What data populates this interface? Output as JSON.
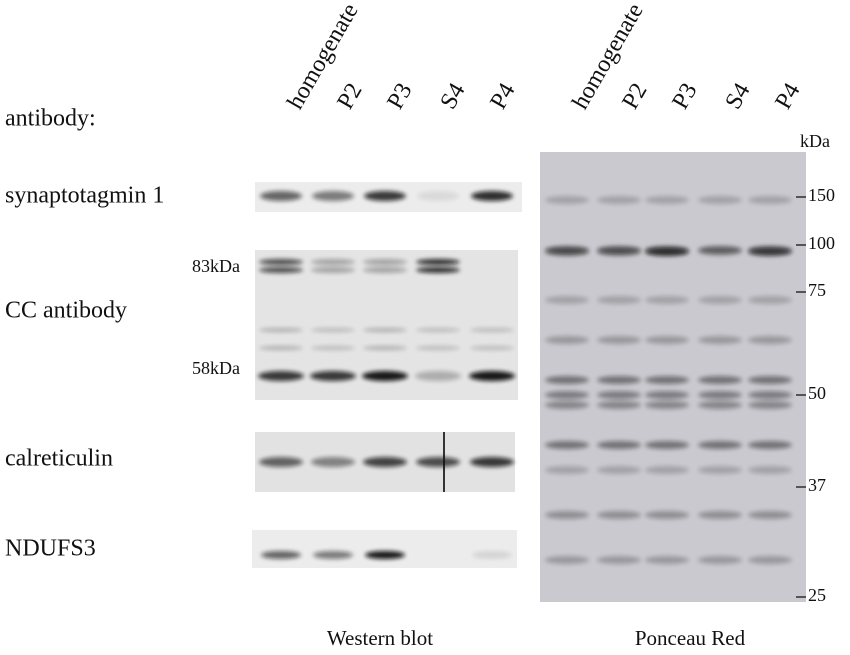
{
  "header": {
    "antibody_label": "antibody:"
  },
  "western_lanes": [
    "homogenate",
    "P2",
    "P3",
    "S4",
    "P4"
  ],
  "ponceau_lanes": [
    "homogenate",
    "P2",
    "P3",
    "S4",
    "P4"
  ],
  "rows": [
    {
      "label": "synaptotagmin 1"
    },
    {
      "label": "CC antibody",
      "markers": [
        "83kDa",
        "58kDa"
      ]
    },
    {
      "label": "calreticulin"
    },
    {
      "label": "NDUFS3"
    }
  ],
  "ladder": {
    "unit": "kDa",
    "markers": [
      "150",
      "100",
      "75",
      "50",
      "37",
      "25"
    ]
  },
  "captions": [
    "Western blot",
    "Ponceau Red"
  ]
}
